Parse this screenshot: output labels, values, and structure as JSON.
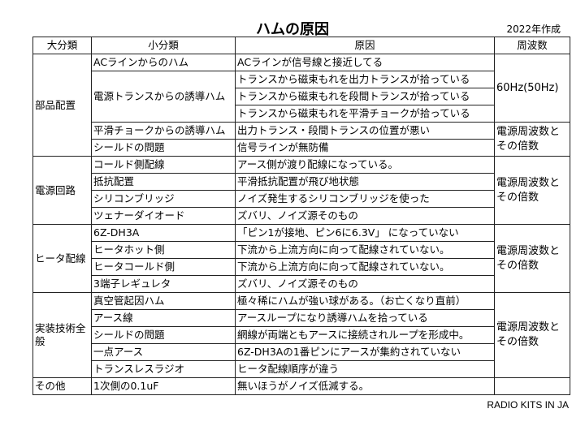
{
  "title": "ハムの原因",
  "date": "2022年作成",
  "footer": "RADIO KITS IN JA",
  "headers": [
    "大分類",
    "小分類",
    "原因",
    "周波数"
  ],
  "freq": {
    "line": "60Hz(50Hz)",
    "multiple": "電源周波数とその倍数"
  },
  "cats": [
    "部品配置",
    "電源回路",
    "ヒータ配線",
    "実装技術全般",
    "その他"
  ],
  "rows": [
    {
      "sub": "ACラインからのハム",
      "cause": "ACラインが信号線と接近してる"
    },
    {
      "sub": "電源トランスからの誘導ハム",
      "cause": "トランスから磁束もれを出力トランスが拾っている"
    },
    {
      "sub": "",
      "cause": "トランスから磁束もれを段間トランスが拾っている"
    },
    {
      "sub": "",
      "cause": "トランスから磁束もれを平滑チョークが拾っている"
    },
    {
      "sub": "平滑チョークからの誘導ハム",
      "cause": "出力トランス・段間トランスの位置が悪い"
    },
    {
      "sub": "シールドの問題",
      "cause": "信号ラインが無防備"
    },
    {
      "sub": "コールド側配線",
      "cause": "アース側が渡り配線になっている。"
    },
    {
      "sub": "抵抗配置",
      "cause": "平滑抵抗配置が飛び地状態"
    },
    {
      "sub": "シリコンブリッジ",
      "cause": "ノイズ発生するシリコンブリッジを使った"
    },
    {
      "sub": "ツェナーダイオード",
      "cause": "ズバリ、ノイズ源そのもの"
    },
    {
      "sub": "6Z-DH3A",
      "cause": "「ピン1が接地、ピン6に6.3V」 になっていない"
    },
    {
      "sub": "ヒータホット側",
      "cause": "下流から上流方向に向って配線されていない。"
    },
    {
      "sub": "ヒータコールド側",
      "cause": "下流から上流方向に向って配線されていない。"
    },
    {
      "sub": "3端子レギュレタ",
      "cause": "ズバリ、ノイズ源そのもの"
    },
    {
      "sub": "真空管起因ハム",
      "cause": "極々稀にハムが強い球がある。（お亡くなり直前）"
    },
    {
      "sub": "アース線",
      "cause": "アースループになり誘導ハムを拾っている"
    },
    {
      "sub": "シールドの問題",
      "cause": "網線が両端ともアースに接続されループを形成中。"
    },
    {
      "sub": "一点アース",
      "cause": "6Z-DH3Aの1番ピンにアースが集約されていない"
    },
    {
      "sub": "トランスレスラジオ",
      "cause": "ヒータ配線順序が違う"
    },
    {
      "sub": "1次側の0.1uF",
      "cause": "無いほうがノイズ低減する。"
    }
  ]
}
